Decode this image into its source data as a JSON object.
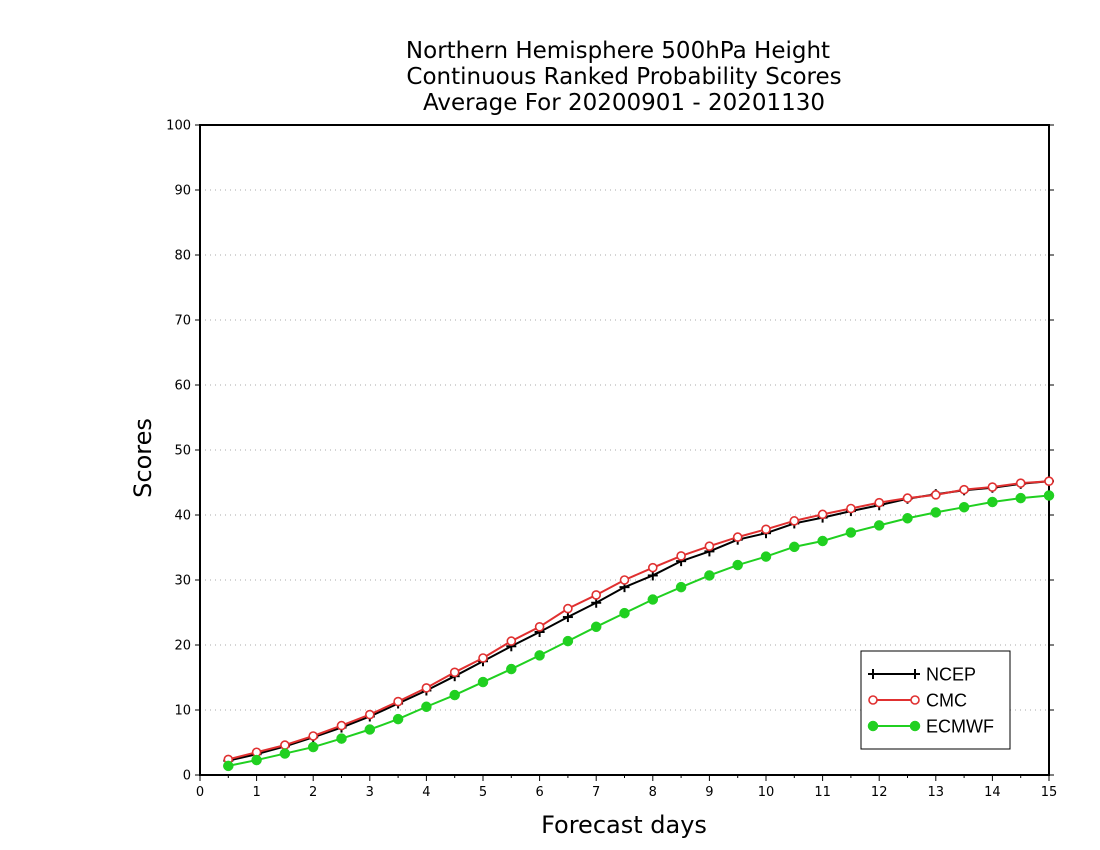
{
  "chart_data": {
    "type": "line",
    "title_lines": [
      "Northern Hemisphere 500hPa Height",
      "Continuous Ranked Probability Scores",
      "Average For 20200901 - 20201130"
    ],
    "xlabel": "Forecast days",
    "ylabel": "Scores",
    "xlim": [
      0,
      15
    ],
    "ylim": [
      0,
      100
    ],
    "xticks": [
      "0",
      "1",
      "2",
      "3",
      "4",
      "5",
      "6",
      "7",
      "8",
      "9",
      "10",
      "11",
      "12",
      "13",
      "14",
      "15"
    ],
    "yticks": [
      "0",
      "10",
      "20",
      "30",
      "40",
      "50",
      "60",
      "70",
      "80",
      "90",
      "100"
    ],
    "grid": "horizontal dotted",
    "legend_position": "bottom-right",
    "x": [
      0.5,
      1,
      1.5,
      2,
      2.5,
      3,
      3.5,
      4,
      4.5,
      5,
      5.5,
      6,
      6.5,
      7,
      7.5,
      8,
      8.5,
      9,
      9.5,
      10,
      10.5,
      11,
      11.5,
      12,
      12.5,
      13,
      13.5,
      14,
      14.5,
      15
    ],
    "series": [
      {
        "name": "NCEP",
        "color": "#000000",
        "marker": "plus",
        "values": [
          2.2,
          3.2,
          4.4,
          5.8,
          7.3,
          9.0,
          11.0,
          13.0,
          15.2,
          17.5,
          19.8,
          22.0,
          24.3,
          26.5,
          28.9,
          30.7,
          32.9,
          34.4,
          36.2,
          37.2,
          38.7,
          39.6,
          40.6,
          41.5,
          42.5,
          43.2,
          43.8,
          44.2,
          44.8,
          45.2
        ]
      },
      {
        "name": "CMC",
        "color": "#e03030",
        "marker": "open-circle",
        "values": [
          2.4,
          3.5,
          4.6,
          6.0,
          7.6,
          9.3,
          11.3,
          13.4,
          15.8,
          18.0,
          20.6,
          22.8,
          25.6,
          27.7,
          30.0,
          31.9,
          33.7,
          35.2,
          36.6,
          37.8,
          39.1,
          40.1,
          41.0,
          41.9,
          42.6,
          43.1,
          43.9,
          44.3,
          44.9,
          45.2
        ]
      },
      {
        "name": "ECMWF",
        "color": "#20d020",
        "marker": "filled-circle",
        "values": [
          1.4,
          2.3,
          3.3,
          4.3,
          5.6,
          7.0,
          8.6,
          10.5,
          12.3,
          14.3,
          16.3,
          18.4,
          20.6,
          22.8,
          24.9,
          27.0,
          28.9,
          30.7,
          32.3,
          33.6,
          35.1,
          36.0,
          37.3,
          38.4,
          39.5,
          40.4,
          41.2,
          42.0,
          42.6,
          43.0
        ]
      }
    ]
  }
}
